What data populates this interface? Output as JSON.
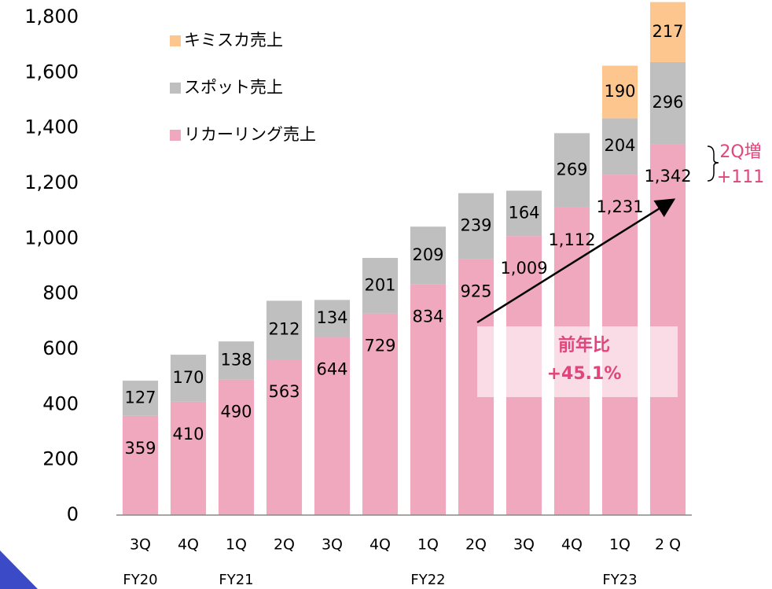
{
  "chart_data": {
    "type": "stacked_bar",
    "categories": [
      "3Q",
      "4Q",
      "1Q",
      "2Q",
      "3Q",
      "4Q",
      "1Q",
      "2Q",
      "3Q",
      "4Q",
      "1Q",
      "2 Q"
    ],
    "groups": [
      "FY20",
      null,
      "FY21",
      null,
      null,
      null,
      "FY22",
      null,
      null,
      null,
      "FY23",
      null
    ],
    "series": [
      {
        "name": "リカーリング売上",
        "color": "#f0a8bf",
        "values": [
          359,
          410,
          490,
          563,
          644,
          729,
          834,
          925,
          1009,
          1112,
          1231,
          1342
        ],
        "value_labels": [
          "359",
          "410",
          "490",
          "563",
          "644",
          "729",
          "834",
          "925",
          "1,009",
          "1,112",
          "1,231",
          "1,342"
        ]
      },
      {
        "name": "スポット売上",
        "color": "#bfbfbf",
        "values": [
          127,
          170,
          138,
          212,
          134,
          201,
          209,
          239,
          164,
          269,
          204,
          296
        ]
      },
      {
        "name": "キミスカ売上",
        "color": "#fdc68f",
        "values": [
          null,
          null,
          null,
          null,
          null,
          null,
          null,
          null,
          null,
          null,
          190,
          217
        ]
      }
    ],
    "ylim": [
      0,
      1800
    ],
    "yticks": [
      0,
      200,
      400,
      600,
      800,
      {
        "value": 1000,
        "label": "1,000"
      },
      {
        "value": 1200,
        "label": "1,200"
      },
      {
        "value": 1400,
        "label": "1,400"
      },
      {
        "value": 1600,
        "label": "1,600"
      },
      {
        "value": 1800,
        "label": "1,800"
      }
    ],
    "legend": "upper left",
    "annotations": {
      "yoy_label": "前年比",
      "yoy_value": "+45.1%",
      "qoq_label": "2Q増",
      "qoq_value": "+111"
    }
  }
}
